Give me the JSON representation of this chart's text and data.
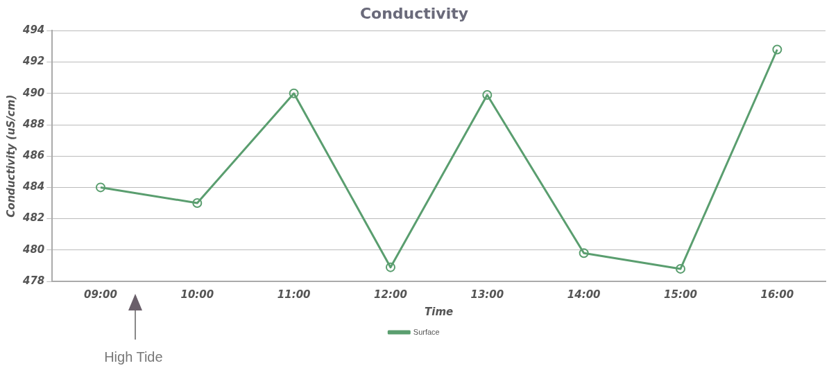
{
  "chart_data": {
    "type": "line",
    "title": "Conductivity",
    "xlabel": "Time",
    "ylabel": "Conductivity (uS/cm)",
    "categories": [
      "09:00",
      "10:00",
      "11:00",
      "12:00",
      "13:00",
      "14:00",
      "15:00",
      "16:00"
    ],
    "series": [
      {
        "name": "Surface",
        "color": "#5a9e6f",
        "values": [
          484,
          483,
          490,
          478.9,
          489.9,
          479.8,
          478.8,
          492.8
        ]
      }
    ],
    "ylim": [
      478,
      494
    ],
    "yticks": [
      478,
      480,
      482,
      484,
      486,
      488,
      490,
      492,
      494
    ],
    "grid": "y",
    "legend": "bottom",
    "marker": "circle",
    "line_style": "solid",
    "annotations": [
      "High Tide"
    ]
  }
}
